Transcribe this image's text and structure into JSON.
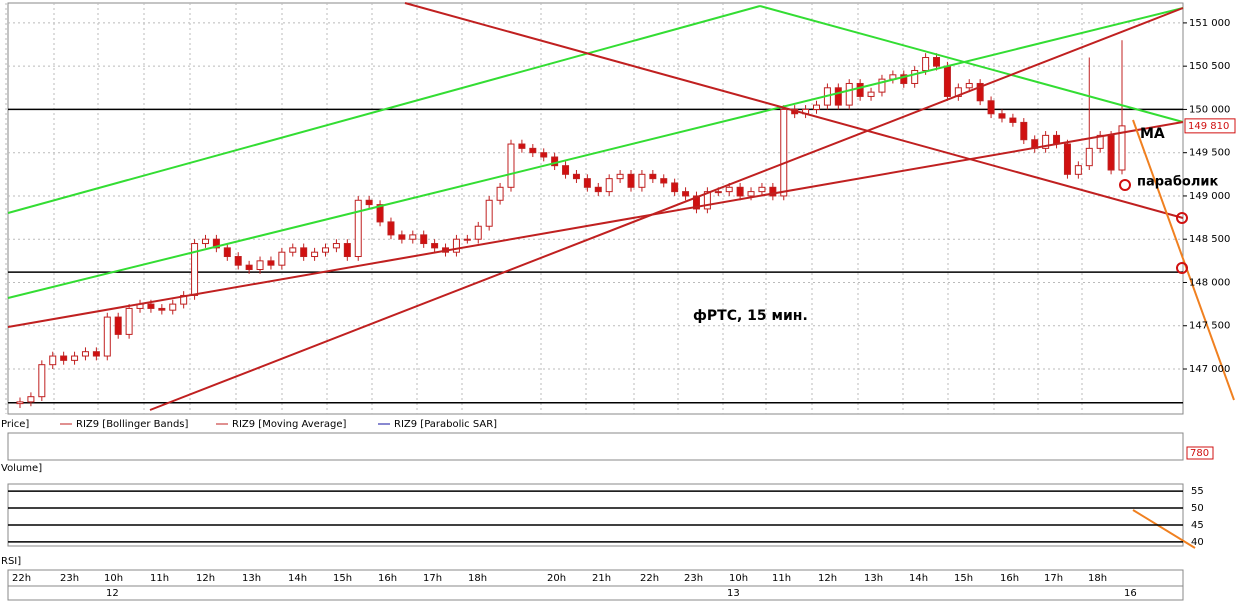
{
  "chart_data": {
    "type": "candlestick",
    "title": "фРТС,  15 мин.",
    "annotations": [
      "MA",
      "параболик"
    ],
    "legend": [
      "Price]",
      "RIZ9 [Bollinger Bands]",
      "RIZ9 [Moving Average]",
      "RIZ9 [Parabolic SAR]"
    ],
    "volume_label": "Volume]",
    "volume_value": "780",
    "rsi_label": "RSI]",
    "last_price": {
      "value": 149810,
      "label": "149 810"
    },
    "open": [
      146600,
      146620,
      146680,
      147050,
      147150,
      147100,
      147150,
      147200,
      147150,
      147600,
      147400,
      147700,
      147750,
      147700,
      147680,
      147750,
      147850,
      148450,
      148500,
      148400,
      148300,
      148200,
      148150,
      148250,
      148200,
      148350,
      148400,
      148300,
      148350,
      148400,
      148450,
      148300,
      148950,
      148900,
      148700,
      148550,
      148500,
      148550,
      148450,
      148400,
      148350,
      148500,
      148500,
      148650,
      148950,
      149100,
      149600,
      149550,
      149500,
      149450,
      149350,
      149250,
      149200,
      149100,
      149050,
      149200,
      149250,
      149100,
      149250,
      149200,
      149150,
      149050,
      149000,
      148850,
      149050,
      149050,
      149100,
      149000,
      149050,
      149100,
      149000,
      150000,
      149950,
      150000,
      150050,
      150250,
      150050,
      150300,
      150150,
      150200,
      150350,
      150400,
      150300,
      150450,
      150600,
      150500,
      150150,
      150250,
      150300,
      150100,
      149950,
      149900,
      149850,
      149650,
      149550,
      149700,
      149600,
      149250,
      149350,
      149550,
      149700,
      149300
    ],
    "high": [
      146670,
      146730,
      147100,
      147200,
      147200,
      147200,
      147250,
      147250,
      147650,
      147650,
      147750,
      147800,
      147800,
      147750,
      147800,
      147900,
      148500,
      148550,
      148550,
      148450,
      148350,
      148250,
      148300,
      148300,
      148400,
      148450,
      148450,
      148400,
      148450,
      148500,
      148500,
      149000,
      149000,
      148950,
      148750,
      148600,
      148600,
      148600,
      148500,
      148450,
      148550,
      148550,
      148700,
      149000,
      149150,
      149650,
      149650,
      149600,
      149550,
      149500,
      149400,
      149300,
      149250,
      149150,
      149250,
      149300,
      149300,
      149300,
      149300,
      149250,
      149200,
      149100,
      149050,
      149100,
      149100,
      149150,
      149150,
      149100,
      149150,
      149150,
      150050,
      150050,
      150050,
      150100,
      150300,
      150300,
      150350,
      150350,
      150250,
      150400,
      150450,
      150450,
      150500,
      150650,
      150650,
      150550,
      150300,
      150350,
      150350,
      150150,
      150000,
      149950,
      149900,
      149700,
      149750,
      149750,
      149650,
      149400,
      150600,
      149750,
      149750,
      150800
    ],
    "low": [
      146550,
      146570,
      146630,
      147000,
      147050,
      147050,
      147100,
      147100,
      147100,
      147350,
      147350,
      147650,
      147650,
      147630,
      147630,
      147700,
      147800,
      148400,
      148350,
      148250,
      148150,
      148100,
      148100,
      148150,
      148150,
      148300,
      148250,
      148250,
      148300,
      148350,
      148250,
      148250,
      148850,
      148650,
      148500,
      148450,
      148450,
      148400,
      148350,
      148300,
      148300,
      148450,
      148450,
      148600,
      148900,
      149050,
      149500,
      149450,
      149400,
      149300,
      149200,
      149150,
      149050,
      149000,
      149000,
      149150,
      149050,
      149050,
      149150,
      149100,
      149000,
      148950,
      148800,
      148800,
      149000,
      149000,
      148950,
      148950,
      149000,
      148950,
      148950,
      149900,
      149900,
      149950,
      150000,
      150000,
      150000,
      150100,
      150100,
      150150,
      150300,
      150250,
      150250,
      150400,
      150450,
      150100,
      150100,
      150200,
      150050,
      149900,
      149850,
      149800,
      149600,
      149500,
      149500,
      149550,
      149200,
      149200,
      149300,
      149500,
      149250,
      149250
    ],
    "close": [
      146620,
      146680,
      147050,
      147150,
      147100,
      147150,
      147200,
      147150,
      147600,
      147400,
      147700,
      147750,
      147700,
      147680,
      147750,
      147850,
      148450,
      148500,
      148400,
      148300,
      148200,
      148150,
      148250,
      148200,
      148350,
      148400,
      148300,
      148350,
      148400,
      148450,
      148300,
      148950,
      148900,
      148700,
      148550,
      148500,
      148550,
      148450,
      148400,
      148350,
      148500,
      148500,
      148650,
      148950,
      149100,
      149600,
      149550,
      149500,
      149450,
      149350,
      149250,
      149200,
      149100,
      149050,
      149200,
      149250,
      149100,
      149250,
      149200,
      149150,
      149050,
      149000,
      148850,
      149050,
      149050,
      149100,
      149000,
      149050,
      149100,
      149000,
      150000,
      149950,
      150000,
      150050,
      150250,
      150050,
      150300,
      150150,
      150200,
      150350,
      150400,
      150300,
      150450,
      150600,
      150500,
      150150,
      150250,
      150300,
      150100,
      149950,
      149900,
      149850,
      149650,
      149550,
      149700,
      149600,
      149250,
      149350,
      149550,
      149700,
      149300,
      149810
    ],
    "up_color": "#ffffff",
    "down_color": "#d01010",
    "levels": [
      150000,
      148120,
      146610
    ],
    "ylim": [
      146480,
      151230
    ],
    "yticks": [
      {
        "value": 147000,
        "label": "147 000"
      },
      {
        "value": 147500,
        "label": "147 500"
      },
      {
        "value": 148000,
        "label": "148 000"
      },
      {
        "value": 148500,
        "label": "148 500"
      },
      {
        "value": 149000,
        "label": "149 000"
      },
      {
        "value": 149500,
        "label": "149 500"
      },
      {
        "value": 150000,
        "label": "150 000"
      },
      {
        "value": 150500,
        "label": "150 500"
      },
      {
        "value": 151000,
        "label": "151 000"
      }
    ],
    "rsi_ylim": [
      38.8,
      57.1
    ],
    "rsi_yticks": [
      40,
      45,
      50,
      55
    ],
    "time_labels": [
      "22h",
      "23h",
      "10h",
      "11h",
      "12h",
      "13h",
      "14h",
      "15h",
      "16h",
      "17h",
      "18h",
      "20h",
      "21h",
      "22h",
      "23h",
      "10h",
      "11h",
      "12h",
      "13h",
      "14h",
      "15h",
      "16h",
      "17h",
      "18h"
    ],
    "date_labels": [
      "12",
      "13",
      "16"
    ],
    "grid": true
  }
}
